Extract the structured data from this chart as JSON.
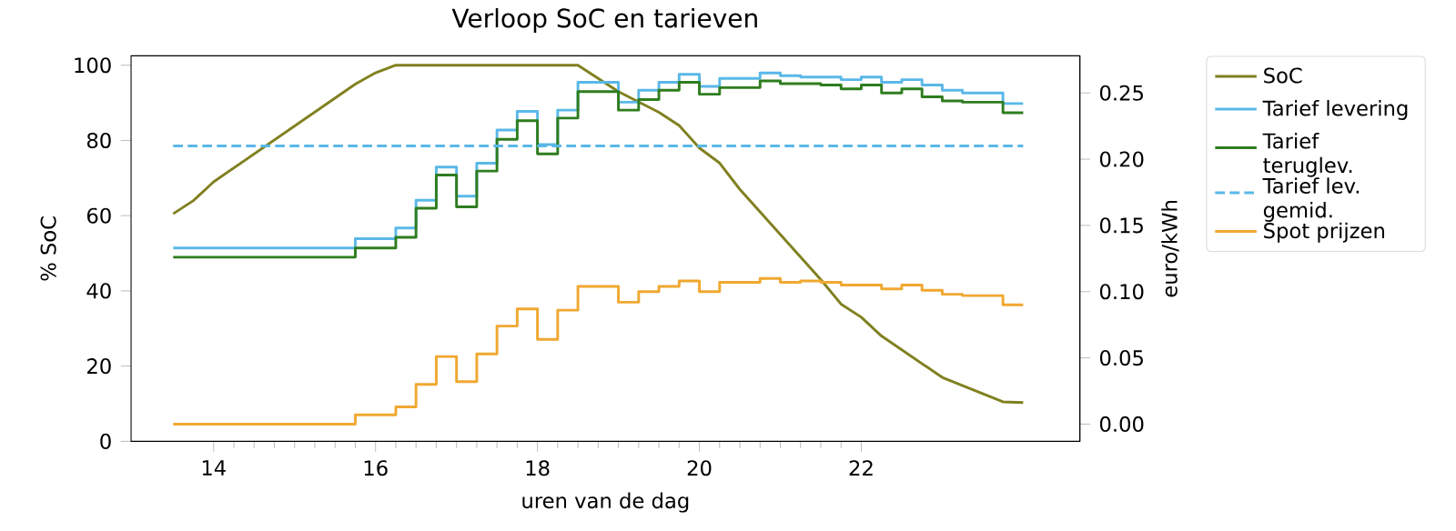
{
  "chart_data": {
    "type": "line",
    "title": "Verloop SoC en tarieven",
    "xlabel": "uren van de dag",
    "ylabel": "% SoC",
    "y2label": "euro/kWh",
    "x": [
      13.5,
      15.75,
      16.25,
      16.5,
      16.75,
      17.0,
      17.25,
      17.5,
      17.75,
      18.0,
      18.25,
      18.5,
      19.0,
      19.25,
      19.5,
      19.75,
      20.0,
      20.25,
      20.75,
      21.0,
      21.25,
      21.5,
      21.75,
      22.0,
      22.25,
      22.5,
      22.75,
      23.0,
      23.25,
      23.75,
      24.0
    ],
    "series": [
      {
        "name": "SoC",
        "color": "#808020",
        "type": "line",
        "x": [
          13.5,
          13.75,
          14.0,
          15.75,
          16.0,
          16.25,
          18.5,
          19.0,
          19.5,
          19.75,
          20.0,
          20.25,
          20.5,
          21.5,
          21.75,
          22.0,
          22.25,
          23.0,
          23.75,
          24.0
        ],
        "values": [
          60.5,
          64,
          69,
          95,
          98,
          100,
          100,
          93,
          87.5,
          84,
          78,
          74,
          67,
          43,
          36.5,
          33,
          28,
          17,
          10.5,
          10.3
        ]
      },
      {
        "name": "Tarief levering",
        "color": "#5ab8e8",
        "type": "step",
        "axis": "y2",
        "values": [
          0.133,
          0.14,
          0.148,
          0.169,
          0.194,
          0.172,
          0.197,
          0.222,
          0.236,
          0.211,
          0.237,
          0.258,
          0.243,
          0.252,
          0.258,
          0.264,
          0.255,
          0.261,
          0.265,
          0.263,
          0.262,
          0.262,
          0.26,
          0.262,
          0.258,
          0.26,
          0.256,
          0.252,
          0.25,
          0.242,
          0.242
        ]
      },
      {
        "name": "Tarief teruglev.",
        "color": "#2e7d1e",
        "type": "step",
        "axis": "y2",
        "values": [
          0.126,
          0.133,
          0.141,
          0.163,
          0.188,
          0.164,
          0.191,
          0.215,
          0.229,
          0.204,
          0.231,
          0.251,
          0.237,
          0.245,
          0.252,
          0.258,
          0.249,
          0.254,
          0.259,
          0.257,
          0.257,
          0.256,
          0.253,
          0.256,
          0.25,
          0.253,
          0.247,
          0.244,
          0.243,
          0.235,
          0.235
        ]
      },
      {
        "name": "Tarief lev. gemid.",
        "color": "#5ab8e8",
        "type": "line",
        "line_style": "dashed",
        "axis": "y2",
        "x": [
          13.5,
          24.0
        ],
        "values": [
          0.21,
          0.21
        ]
      },
      {
        "name": "Spot prijzen",
        "color": "#f0a830",
        "type": "step",
        "axis": "y2",
        "values": [
          0.0,
          0.007,
          0.013,
          0.03,
          0.051,
          0.032,
          0.053,
          0.074,
          0.087,
          0.064,
          0.086,
          0.104,
          0.092,
          0.1,
          0.104,
          0.108,
          0.1,
          0.107,
          0.11,
          0.107,
          0.108,
          0.107,
          0.105,
          0.105,
          0.102,
          0.105,
          0.101,
          0.098,
          0.097,
          0.09,
          0.09
        ]
      }
    ],
    "xlim": [
      12.98,
      24.7
    ],
    "xticks": [
      14,
      16,
      18,
      20,
      22
    ],
    "ylim": [
      0,
      102.5
    ],
    "yticks": [
      0,
      20,
      40,
      60,
      80,
      100
    ],
    "y2lim": [
      -0.013,
      0.278
    ],
    "y2ticks": [
      {
        "value": 0,
        "label": "0.00"
      },
      {
        "value": 0.05,
        "label": "0.05"
      },
      {
        "value": 0.1,
        "label": "0.10"
      },
      {
        "value": 0.15,
        "label": "0.15"
      },
      {
        "value": 0.2,
        "label": "0.20"
      },
      {
        "value": 0.25,
        "label": "0.25"
      }
    ],
    "legend": "right"
  }
}
